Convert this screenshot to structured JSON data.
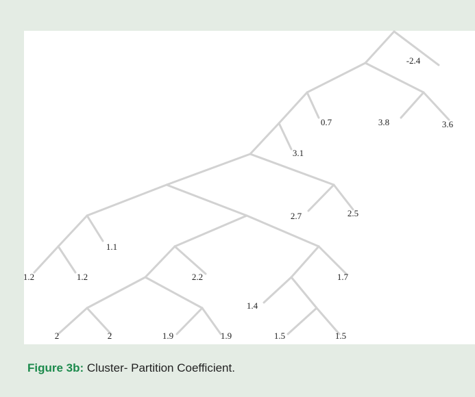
{
  "figure": {
    "labels": [
      "-2.4",
      "0.7",
      "3.8",
      "3.6",
      "3.1",
      "2.7",
      "2.5",
      "1.1",
      "1.2",
      "1.2",
      "2.2",
      "1.7",
      "1.4",
      "2",
      "2",
      "1.9",
      "1.9",
      "1.5",
      "1.5"
    ],
    "caption_label": "Figure 3b:",
    "caption_text": "Cluster- Partition Coefficient."
  }
}
